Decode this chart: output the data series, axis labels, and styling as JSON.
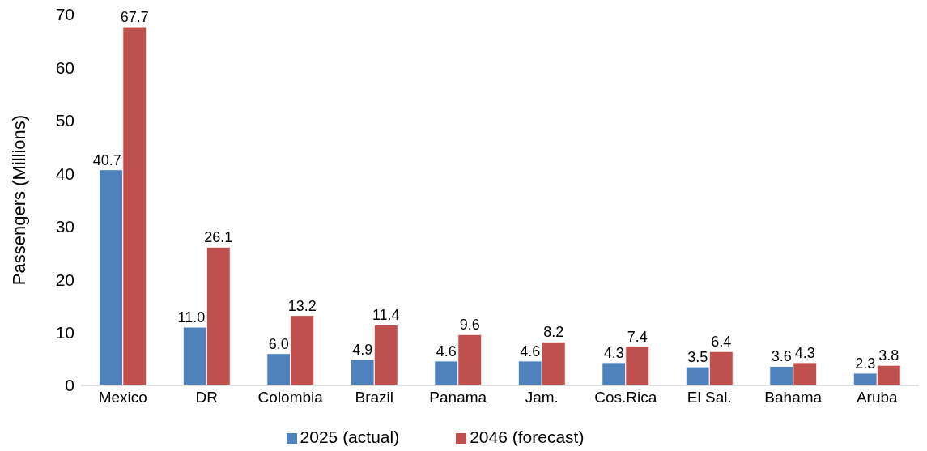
{
  "chart_data": {
    "type": "bar",
    "ylabel": "Passengers (Millions)",
    "categories": [
      "Mexico",
      "DR",
      "Colombia",
      "Brazil",
      "Panama",
      "Jam.",
      "Cos.Rica",
      "El Sal.",
      "Bahama",
      "Aruba"
    ],
    "series": [
      {
        "name": "2025 (actual)",
        "color": "#4f81bd",
        "values": [
          40.7,
          11.0,
          6.0,
          4.9,
          4.6,
          4.6,
          4.3,
          3.5,
          3.6,
          2.3
        ],
        "value_labels": [
          "40.7",
          "11.0",
          "6.0",
          "4.9",
          "4.6",
          "4.6",
          "4.3",
          "3.5",
          "3.6",
          "2.3"
        ]
      },
      {
        "name": "2046 (forecast)",
        "color": "#c0504d",
        "values": [
          67.7,
          26.1,
          13.2,
          11.4,
          9.6,
          8.2,
          7.4,
          6.4,
          4.3,
          3.8
        ],
        "value_labels": [
          "67.7",
          "26.1",
          "13.2",
          "11.4",
          "9.6",
          "8.2",
          "7.4",
          "6.4",
          "4.3",
          "3.8"
        ]
      }
    ],
    "ylim": [
      0,
      70
    ],
    "yticks": [
      0,
      10,
      20,
      30,
      40,
      50,
      60,
      70
    ],
    "grid": false,
    "legend": "bottom"
  }
}
